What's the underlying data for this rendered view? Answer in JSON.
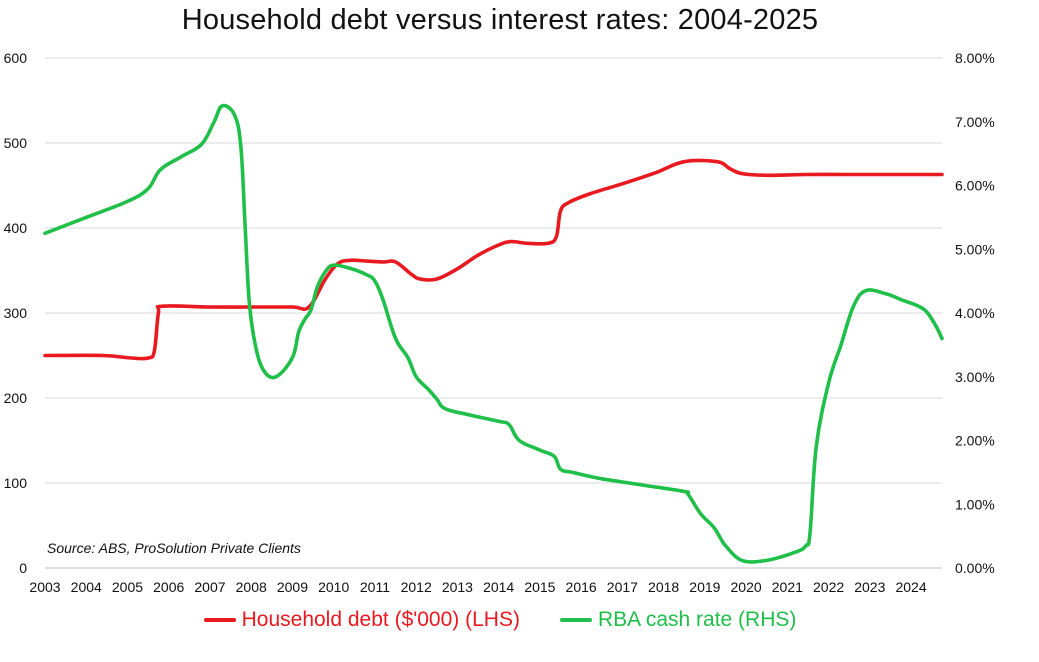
{
  "chart_data": {
    "type": "line",
    "title": "Household debt versus interest rates: 2004-2025",
    "source": "Source: ABS, ProSolution Private Clients",
    "x_ticks": [
      "2003",
      "2004",
      "2005",
      "2006",
      "2007",
      "2008",
      "2009",
      "2010",
      "2011",
      "2012",
      "2013",
      "2014",
      "2015",
      "2016",
      "2017",
      "2018",
      "2019",
      "2020",
      "2021",
      "2022",
      "2023",
      "2024"
    ],
    "xlim": [
      2003,
      2024.75
    ],
    "y_left": {
      "ticks": [
        "0",
        "100",
        "200",
        "300",
        "400",
        "500",
        "600"
      ],
      "ylim": [
        0,
        600
      ],
      "label": ""
    },
    "y_right": {
      "ticks": [
        "0.00%",
        "1.00%",
        "2.00%",
        "3.00%",
        "4.00%",
        "5.00%",
        "6.00%",
        "7.00%",
        "8.00%"
      ],
      "ylim": [
        0,
        8
      ]
    },
    "grid": true,
    "legend_position": "bottom",
    "series": [
      {
        "name": "Household debt ($'000) (LHS)",
        "axis": "left",
        "color": "#e8191f",
        "x": [
          2003,
          2004.4,
          2005.1,
          2005.5,
          2005.65,
          2005.75,
          2005.85,
          2007,
          2008,
          2009,
          2009.4,
          2009.8,
          2010.1,
          2010.4,
          2010.8,
          2011.2,
          2011.5,
          2011.9,
          2012.1,
          2012.5,
          2013,
          2013.5,
          2014,
          2014.3,
          2014.7,
          2015.2,
          2015.4,
          2015.5,
          2015.7,
          2016.2,
          2017,
          2017.8,
          2018.5,
          2019.3,
          2019.6,
          2019.9,
          2020.5,
          2021.5,
          2022.5,
          2024.75
        ],
        "values": [
          250,
          250,
          247,
          247,
          255,
          300,
          308,
          307,
          307,
          307,
          307,
          340,
          358,
          362,
          361,
          360,
          360,
          345,
          340,
          340,
          352,
          368,
          380,
          384,
          382,
          382,
          390,
          420,
          430,
          440,
          452,
          465,
          478,
          478,
          470,
          464,
          462,
          463,
          463,
          463
        ]
      },
      {
        "name": "RBA cash rate (RHS)",
        "axis": "right",
        "color": "#1fbf4a",
        "x": [
          2003,
          2004,
          2005,
          2005.5,
          2005.8,
          2006.3,
          2006.8,
          2007.1,
          2007.3,
          2007.6,
          2007.75,
          2007.85,
          2007.95,
          2008.1,
          2008.3,
          2008.6,
          2009,
          2009.15,
          2009.3,
          2009.45,
          2009.6,
          2009.8,
          2010,
          2010.4,
          2010.8,
          2011,
          2011.2,
          2011.5,
          2011.8,
          2012,
          2012.3,
          2012.5,
          2012.7,
          2013.3,
          2014,
          2014.25,
          2014.5,
          2015,
          2015.35,
          2015.5,
          2015.8,
          2016.5,
          2017.5,
          2018.5,
          2018.6,
          2018.9,
          2019.2,
          2019.35,
          2019.5,
          2019.9,
          2020.5,
          2021.2,
          2021.45,
          2021.55,
          2021.7,
          2022,
          2022.3,
          2022.6,
          2022.9,
          2023.4,
          2023.8,
          2024.2,
          2024.4,
          2024.6,
          2024.75
        ],
        "values": [
          5.25,
          5.5,
          5.75,
          5.95,
          6.25,
          6.45,
          6.65,
          7.0,
          7.25,
          7.1,
          6.6,
          5.4,
          4.2,
          3.5,
          3.1,
          3.0,
          3.3,
          3.7,
          3.9,
          4.05,
          4.4,
          4.65,
          4.75,
          4.7,
          4.6,
          4.5,
          4.2,
          3.6,
          3.3,
          3.0,
          2.8,
          2.65,
          2.5,
          2.4,
          2.3,
          2.25,
          2.0,
          1.85,
          1.75,
          1.55,
          1.5,
          1.4,
          1.3,
          1.2,
          1.15,
          0.85,
          0.65,
          0.5,
          0.35,
          0.12,
          0.12,
          0.25,
          0.35,
          0.55,
          1.9,
          2.9,
          3.5,
          4.1,
          4.35,
          4.3,
          4.2,
          4.1,
          4.0,
          3.8,
          3.6
        ]
      }
    ]
  }
}
